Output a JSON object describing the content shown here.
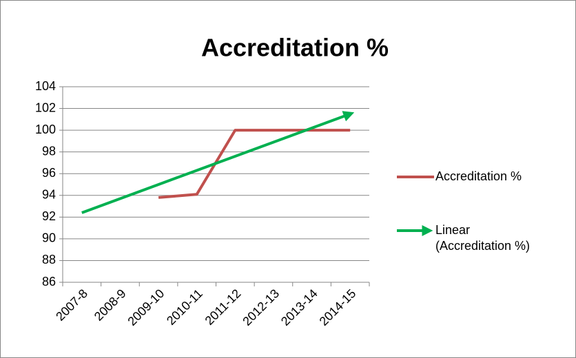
{
  "chart_data": {
    "type": "line",
    "title": "Accreditation %",
    "categories": [
      "2007-8",
      "2008-9",
      "2009-10",
      "2010-11",
      "2011-12",
      "2012-13",
      "2013-14",
      "2014-15"
    ],
    "series": [
      {
        "name": "Accreditation %",
        "color": "#c0504d",
        "values": [
          null,
          null,
          93.8,
          94.1,
          100,
          100,
          100,
          100
        ]
      },
      {
        "name": "Linear (Accreditation %)",
        "color": "#00b050",
        "values": [
          92.4,
          93.7,
          95.0,
          96.3,
          97.6,
          98.9,
          100.2,
          101.5
        ]
      }
    ],
    "ylim": [
      86,
      104
    ],
    "yticks": [
      86,
      88,
      90,
      92,
      94,
      96,
      98,
      100,
      102,
      104
    ],
    "grid": true,
    "legend": "right"
  }
}
